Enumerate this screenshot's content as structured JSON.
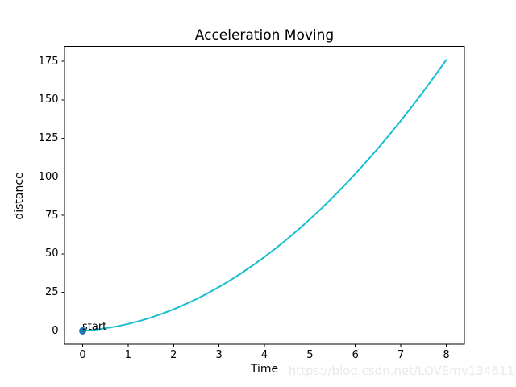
{
  "watermark": {
    "text": "https://blog.csdn.net/LOVEmy134611",
    "color": "#e9e9e9"
  },
  "chart_data": {
    "type": "line",
    "title": "Acceleration Moving",
    "xlabel": "Time",
    "ylabel": "distance",
    "xlim": [
      -0.4,
      8.4
    ],
    "ylim": [
      -8.8,
      184.8
    ],
    "x_ticks": [
      0,
      1,
      2,
      3,
      4,
      5,
      6,
      7,
      8
    ],
    "y_ticks": [
      0,
      25,
      50,
      75,
      100,
      125,
      150,
      175
    ],
    "grid": false,
    "legend": false,
    "background_color": "#ffffff",
    "spine_color": "#000000",
    "series": [
      {
        "name": "distance",
        "color": "#17becf",
        "linewidth": 2,
        "x": [
          0,
          0.25,
          0.5,
          0.75,
          1,
          1.25,
          1.5,
          1.75,
          2,
          2.25,
          2.5,
          2.75,
          3,
          3.25,
          3.5,
          3.75,
          4,
          4.25,
          4.5,
          4.75,
          5,
          5.25,
          5.5,
          5.75,
          6,
          6.25,
          6.5,
          6.75,
          7,
          7.25,
          7.5,
          7.75,
          8
        ],
        "y": [
          0,
          0.66,
          1.63,
          2.91,
          4.5,
          6.41,
          8.63,
          11.16,
          14,
          17.16,
          20.63,
          24.41,
          28.5,
          32.91,
          37.63,
          42.66,
          48,
          53.66,
          59.63,
          65.91,
          72.5,
          79.41,
          86.63,
          94.16,
          102,
          110.16,
          118.63,
          127.41,
          136.5,
          145.91,
          155.63,
          165.66,
          176
        ]
      }
    ],
    "annotations": [
      {
        "label": "start",
        "x": 0,
        "y": 0,
        "marker_color": "#1f77b4",
        "marker_radius": 4.5
      }
    ]
  }
}
